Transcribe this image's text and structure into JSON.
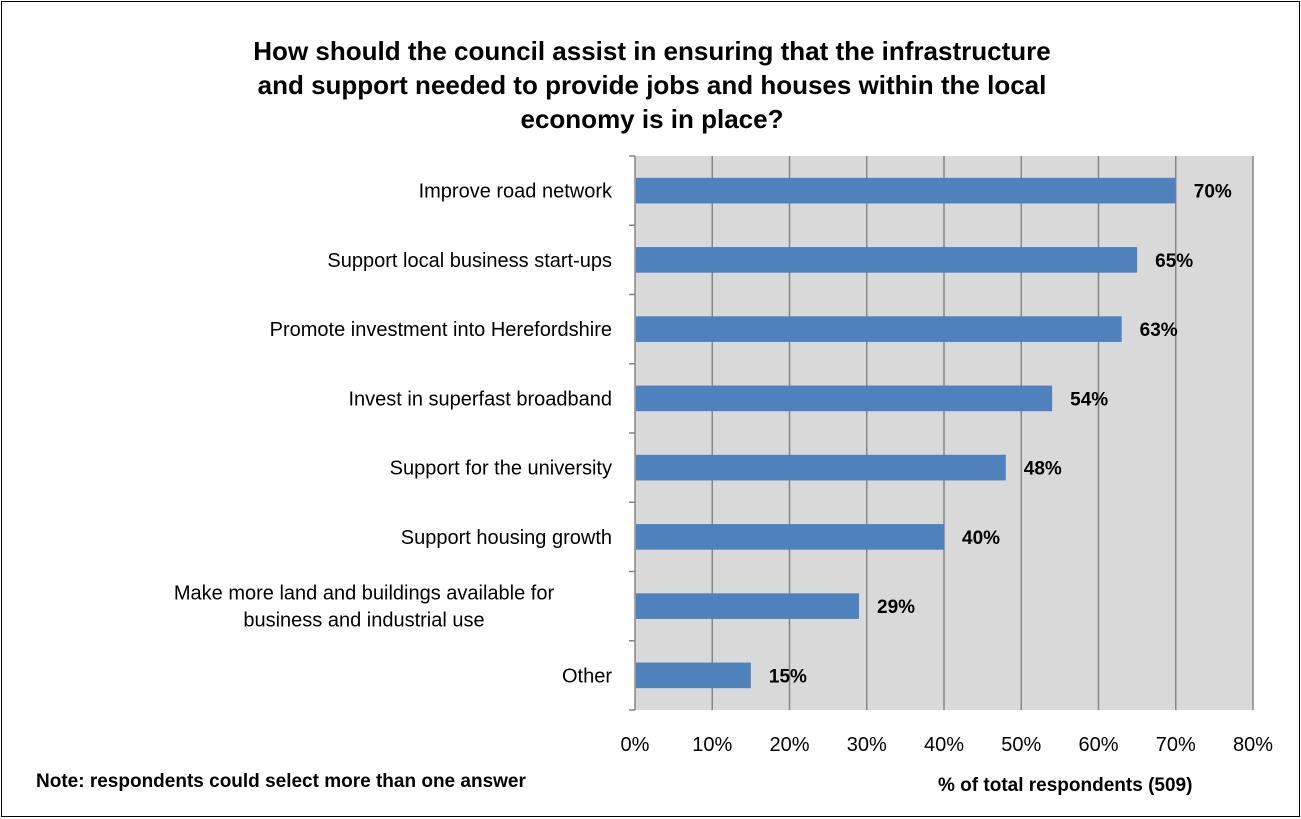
{
  "chart_data": {
    "type": "bar",
    "orientation": "horizontal",
    "title": "How should the council assist in ensuring that the infrastructure and support needed to provide jobs and houses within the local economy is in place?",
    "title_lines": [
      "How should the council assist in ensuring that the infrastructure",
      "and support needed to provide jobs and houses within the local",
      "economy is in place?"
    ],
    "categories": [
      "Improve road network",
      "Support local business start-ups",
      "Promote investment into Herefordshire",
      "Invest in superfast broadband",
      "Support for the university",
      "Support housing growth",
      "Make more land and buildings available for business and industrial use",
      "Other"
    ],
    "category_lines": [
      [
        "Improve road network"
      ],
      [
        "Support local business start-ups"
      ],
      [
        "Promote investment into Herefordshire"
      ],
      [
        "Invest in superfast broadband"
      ],
      [
        "Support for the university"
      ],
      [
        "Support housing growth"
      ],
      [
        "Make more land and buildings available for",
        "business and industrial use"
      ],
      [
        "Other"
      ]
    ],
    "values": [
      70,
      65,
      63,
      54,
      48,
      40,
      29,
      15
    ],
    "value_labels": [
      "70%",
      "65%",
      "63%",
      "54%",
      "48%",
      "40%",
      "29%",
      "15%"
    ],
    "xlim": [
      0,
      80
    ],
    "x_ticks": [
      0,
      10,
      20,
      30,
      40,
      50,
      60,
      70,
      80
    ],
    "x_tick_labels": [
      "0%",
      "10%",
      "20%",
      "30%",
      "40%",
      "50%",
      "60%",
      "70%",
      "80%"
    ],
    "xlabel": "% of total respondents (509)",
    "ylabel": "",
    "note": "Note: respondents could select more than one answer",
    "grid": true,
    "legend": "none",
    "colors": {
      "bar": "#4f81bd",
      "plot_background": "#d9d9d9",
      "gridline": "#868686",
      "text": "#000000"
    }
  }
}
